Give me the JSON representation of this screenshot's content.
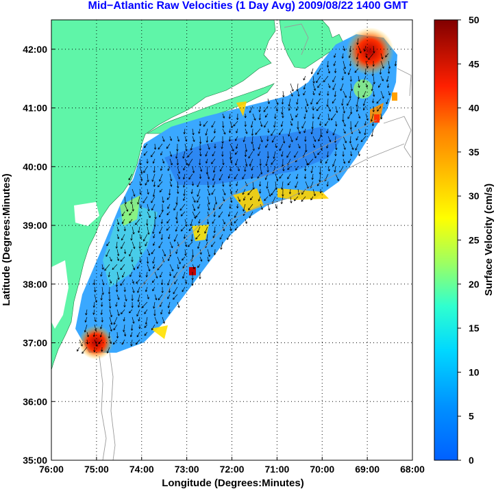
{
  "title": "Mid−Atlantic Raw Velocities (1 Day Avg) 2009/08/22 1400 GMT",
  "axes": {
    "xlabel": "Longitude (Degrees:Minutes)",
    "ylabel": "Latitude (Degrees:Minutes)",
    "x_ticks": [
      "76:00",
      "75:00",
      "74:00",
      "73:00",
      "72:00",
      "71:00",
      "70:00",
      "69:00",
      "68:00"
    ],
    "y_ticks": [
      "42:00",
      "41:00",
      "40:00",
      "39:00",
      "38:00",
      "37:00",
      "36:00",
      "35:00"
    ],
    "x_range_deg_west": [
      76,
      68
    ],
    "y_range_deg_north": [
      35,
      42.5
    ],
    "grid": "dotted"
  },
  "colorbar": {
    "label": "Surface Velocity (cm/s)",
    "ticks": [
      "50",
      "45",
      "40",
      "35",
      "30",
      "25",
      "20",
      "15",
      "10",
      "5",
      "0"
    ],
    "range": [
      0,
      50
    ],
    "colormap": "jet"
  },
  "colors": {
    "land": "#5ff5a8",
    "title": "#0000ff",
    "bathymetry": "#999999"
  }
}
